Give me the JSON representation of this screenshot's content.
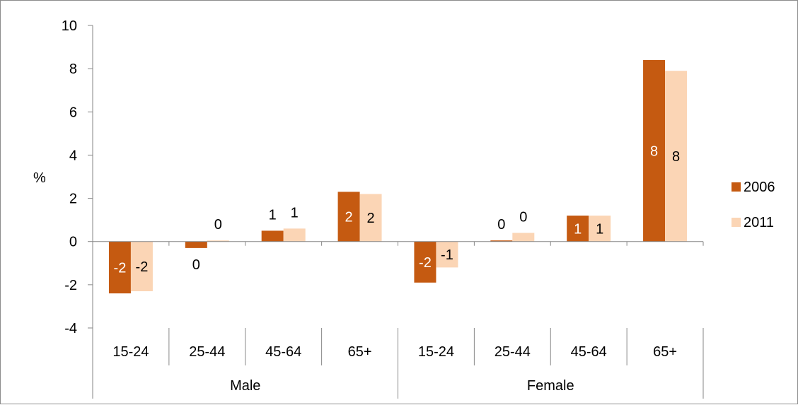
{
  "chart_data": {
    "type": "bar",
    "ylabel": "%",
    "ylim": [
      -4,
      10
    ],
    "yticks": [
      -4,
      -2,
      0,
      2,
      4,
      6,
      8,
      10
    ],
    "grid": false,
    "legend_position": "right",
    "groups": [
      {
        "label": "Male",
        "categories": [
          "15-24",
          "25-44",
          "45-64",
          "65+"
        ]
      },
      {
        "label": "Female",
        "categories": [
          "15-24",
          "25-44",
          "45-64",
          "65+"
        ]
      }
    ],
    "categories": [
      "15-24",
      "25-44",
      "45-64",
      "65+",
      "15-24",
      "25-44",
      "45-64",
      "65+"
    ],
    "series": [
      {
        "name": "2006",
        "color": "#c55a11",
        "label_color": "#ffffff",
        "values": [
          -2.4,
          -0.3,
          0.5,
          2.3,
          -1.9,
          0.05,
          1.2,
          8.4
        ],
        "labels": [
          "-2",
          "0",
          "1",
          "2",
          "-2",
          "0",
          "1",
          "8"
        ]
      },
      {
        "name": "2011",
        "color": "#fbd5b5",
        "label_color": "#000000",
        "values": [
          -2.3,
          0.05,
          0.6,
          2.2,
          -1.2,
          0.4,
          1.2,
          7.9
        ],
        "labels": [
          "-2",
          "0",
          "1",
          "2",
          "-1",
          "0",
          "1",
          "8"
        ]
      }
    ]
  }
}
